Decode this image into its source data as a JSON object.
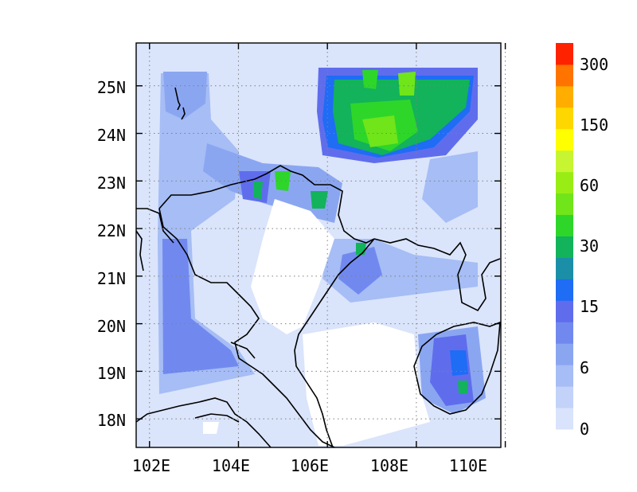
{
  "map": {
    "lat_labels": [
      "25N",
      "24N",
      "23N",
      "22N",
      "21N",
      "20N",
      "19N",
      "18N"
    ],
    "lon_labels": [
      "102E",
      "104E",
      "106E",
      "108E",
      "110E"
    ],
    "lat_values": [
      25,
      24,
      23,
      22,
      21,
      20,
      19,
      18
    ],
    "lon_values": [
      102,
      104,
      106,
      108,
      110
    ],
    "lon_range": [
      101.7,
      109.9
    ],
    "lat_range": [
      17.4,
      25.9
    ],
    "grid": "dotted",
    "background_color": "#ffffff"
  },
  "colorbar": {
    "placement": "right",
    "labels": [
      "0",
      "6",
      "15",
      "30",
      "60",
      "150",
      "300"
    ],
    "levels": [
      0,
      3,
      6,
      9,
      12,
      15,
      20,
      25,
      30,
      40,
      50,
      60,
      80,
      100,
      150,
      200,
      250,
      300
    ],
    "colors": [
      "#d9e3fb",
      "#c3d2f8",
      "#a6bdf5",
      "#8ba6f1",
      "#7189ef",
      "#5f6ded",
      "#1f6cf5",
      "#1b8fa7",
      "#12b35a",
      "#2ed62a",
      "#6fe51a",
      "#99ed14",
      "#c7f531",
      "#ffff00",
      "#ffd700",
      "#ffae00",
      "#ff7300",
      "#ff2200"
    ]
  }
}
